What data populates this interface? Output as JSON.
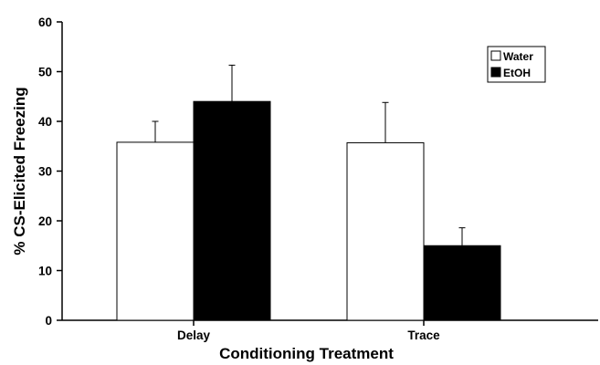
{
  "chart_data": {
    "type": "bar",
    "title": "",
    "xlabel": "Conditioning Treatment",
    "ylabel": "% CS-Elicited Freezing",
    "categories": [
      "Delay",
      "Trace"
    ],
    "ylim": [
      0,
      60
    ],
    "yticks": [
      "0",
      "10",
      "20",
      "30",
      "40",
      "50",
      "60"
    ],
    "series": [
      {
        "name": "Water",
        "values": [
          35.8,
          35.7
        ],
        "errors": [
          4.2,
          8.1
        ],
        "color": "#ffffff",
        "stroke": "#000000"
      },
      {
        "name": "EtOH",
        "values": [
          44.0,
          15.0
        ],
        "errors": [
          7.3,
          3.6
        ],
        "color": "#000000",
        "stroke": "#000000"
      }
    ],
    "error_bars": "upper",
    "grid": false,
    "legend_position": "top-right"
  }
}
